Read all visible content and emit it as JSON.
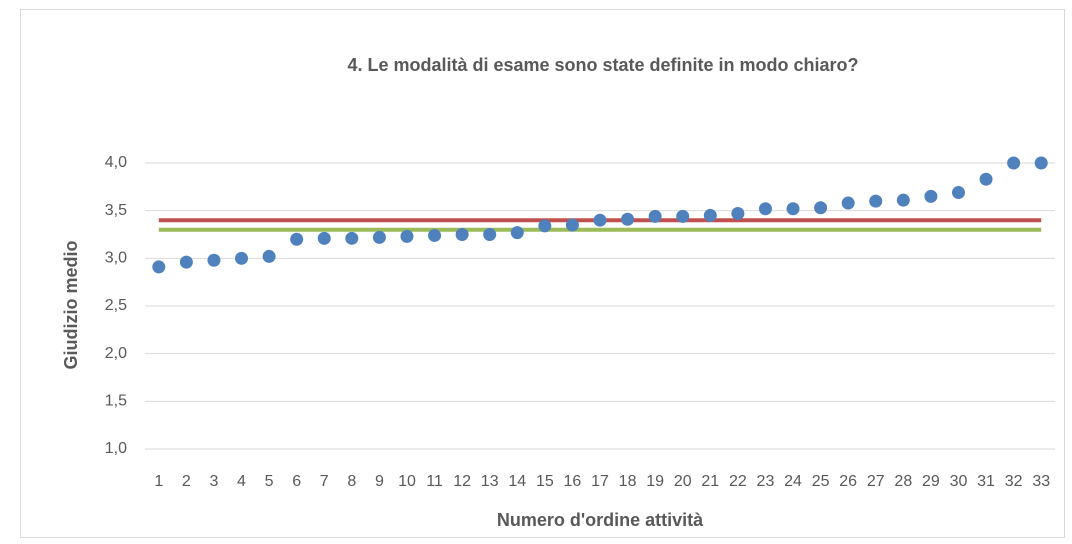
{
  "chart_data": {
    "type": "scatter",
    "title": "4. Le modalità di esame sono state definite in modo chiaro?",
    "x_label": "Numero d'ordine attività",
    "y_label": "Giudizio medio",
    "categories": [
      "1",
      "2",
      "3",
      "4",
      "5",
      "6",
      "7",
      "8",
      "9",
      "10",
      "11",
      "12",
      "13",
      "14",
      "15",
      "16",
      "17",
      "18",
      "19",
      "20",
      "21",
      "22",
      "23",
      "24",
      "25",
      "26",
      "27",
      "28",
      "29",
      "30",
      "31",
      "32",
      "33"
    ],
    "series": [
      {
        "type": "scatter",
        "color": "#4f81bd",
        "values": [
          2.91,
          2.96,
          2.98,
          3.0,
          3.02,
          3.2,
          3.21,
          3.21,
          3.22,
          3.23,
          3.24,
          3.25,
          3.25,
          3.27,
          3.34,
          3.35,
          3.4,
          3.41,
          3.44,
          3.44,
          3.45,
          3.47,
          3.52,
          3.52,
          3.53,
          3.58,
          3.6,
          3.61,
          3.65,
          3.69,
          3.83,
          4.0,
          4.0
        ]
      },
      {
        "type": "line",
        "color": "#c0504d",
        "values": [
          3.4,
          3.4,
          3.4,
          3.4,
          3.4,
          3.4,
          3.4,
          3.4,
          3.4,
          3.4,
          3.4,
          3.4,
          3.4,
          3.4,
          3.4,
          3.4,
          3.4,
          3.4,
          3.4,
          3.4,
          3.4,
          3.4,
          3.4,
          3.4,
          3.4,
          3.4,
          3.4,
          3.4,
          3.4,
          3.4,
          3.4,
          3.4,
          3.4
        ]
      },
      {
        "type": "line",
        "color": "#9bbb59",
        "values": [
          3.3,
          3.3,
          3.3,
          3.3,
          3.3,
          3.3,
          3.3,
          3.3,
          3.3,
          3.3,
          3.3,
          3.3,
          3.3,
          3.3,
          3.3,
          3.3,
          3.3,
          3.3,
          3.3,
          3.3,
          3.3,
          3.3,
          3.3,
          3.3,
          3.3,
          3.3,
          3.3,
          3.3,
          3.3,
          3.3,
          3.3,
          3.3,
          3.3
        ]
      }
    ],
    "ylim": [
      1,
      4
    ],
    "yticks": [
      {
        "value": 1,
        "label": "1,0"
      },
      {
        "value": 1.5,
        "label": "1,5"
      },
      {
        "value": 2,
        "label": "2,0"
      },
      {
        "value": 2.5,
        "label": "2,5"
      },
      {
        "value": 3,
        "label": "3,0"
      },
      {
        "value": 3.5,
        "label": "3,5"
      },
      {
        "value": 4,
        "label": "4,0"
      }
    ],
    "grid": true
  }
}
